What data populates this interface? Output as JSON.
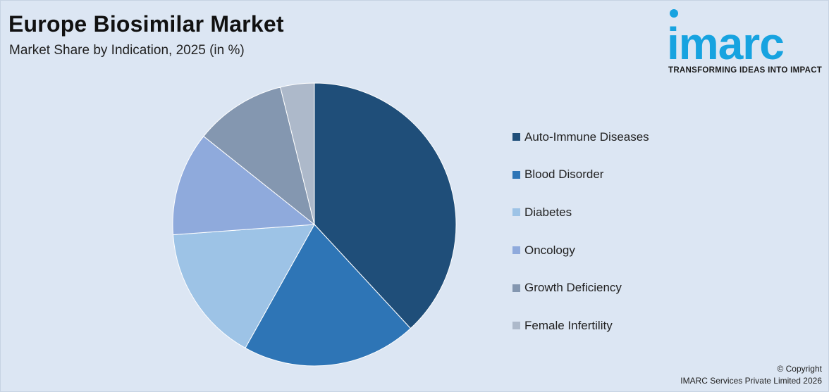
{
  "header": {
    "title": "Europe Biosimilar Market",
    "subtitle": "Market Share by Indication, 2025 (in %)"
  },
  "logo": {
    "word": "imarc",
    "tagline": "TRANSFORMING IDEAS INTO IMPACT",
    "color": "#17a3e0"
  },
  "chart_data": {
    "type": "pie",
    "categories": [
      "Auto-Immune Diseases",
      "Blood Disorder",
      "Diabetes",
      "Oncology",
      "Growth Deficiency",
      "Female Infertility"
    ],
    "values": [
      39.5,
      20.7,
      16.3,
      12.3,
      10.8,
      4.0
    ],
    "colors": [
      "#1f4e79",
      "#2e75b6",
      "#9dc3e6",
      "#8faadc",
      "#8497b0",
      "#adb9ca"
    ],
    "legend_position": "right"
  },
  "footer": {
    "copyright_line1": "© Copyright",
    "copyright_line2": "IMARC Services Private Limited 2026"
  }
}
